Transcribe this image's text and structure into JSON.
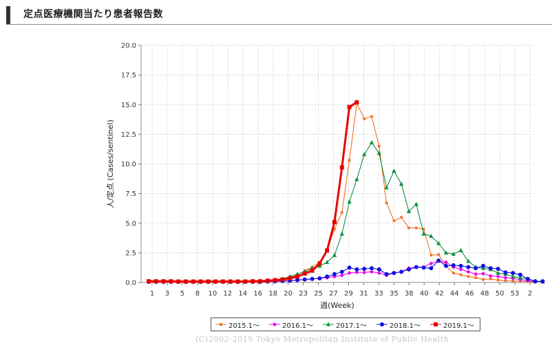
{
  "header": {
    "title": "定点医療機関当たり患者報告数"
  },
  "copyright": "(C)2002-2019 Tokyo Metropolitan Institute of Public Health",
  "chart_data": {
    "type": "line",
    "xlabel": "週(Week)",
    "ylabel": "人/定点 (Cases/sentinel)",
    "ylim": [
      0,
      20
    ],
    "y_ticks": [
      "0.0",
      "2.5",
      "5.0",
      "7.5",
      "10.0",
      "12.5",
      "15.0",
      "17.5",
      "20.0"
    ],
    "x_ticks": [
      "1",
      "3",
      "5",
      "8",
      "10",
      "12",
      "14",
      "16",
      "18",
      "20",
      "23",
      "25",
      "27",
      "29",
      "31",
      "33",
      "35",
      "38",
      "40",
      "42",
      "44",
      "46",
      "48",
      "50",
      "53",
      "2"
    ],
    "grid": true,
    "legend_position": "bottom",
    "series": [
      {
        "name": "2015.1～",
        "color": "#f07020",
        "marker": "square-small",
        "values": [
          0.1,
          0.1,
          0.1,
          0.08,
          0.08,
          0.1,
          0.08,
          0.08,
          0.08,
          0.08,
          0.1,
          0.1,
          0.1,
          0.1,
          0.1,
          0.1,
          0.15,
          0.2,
          0.3,
          0.45,
          0.65,
          1.0,
          1.3,
          1.7,
          2.7,
          4.5,
          5.9,
          10.3,
          15.1,
          13.8,
          14.0,
          11.5,
          6.7,
          5.2,
          5.5,
          4.6,
          4.6,
          4.5,
          2.3,
          2.35,
          1.4,
          0.8,
          0.65,
          0.5,
          0.4,
          0.25,
          0.3,
          0.2,
          0.15,
          0.12,
          0.1,
          0.08,
          0.05,
          0.05
        ]
      },
      {
        "name": "2016.1～",
        "color": "#ee00ee",
        "marker": "diamond",
        "values": [
          0.05,
          0.05,
          0.05,
          0.05,
          0.05,
          0.05,
          0.05,
          0.05,
          0.05,
          0.05,
          0.05,
          0.05,
          0.05,
          0.05,
          0.05,
          0.05,
          0.08,
          0.1,
          0.12,
          0.15,
          0.2,
          0.25,
          0.3,
          0.35,
          0.4,
          0.5,
          0.6,
          0.8,
          0.85,
          0.85,
          0.9,
          0.8,
          0.6,
          0.8,
          0.9,
          1.2,
          1.3,
          1.3,
          1.6,
          1.8,
          1.7,
          1.3,
          1.1,
          0.9,
          0.7,
          0.75,
          0.55,
          0.5,
          0.4,
          0.35,
          0.25,
          0.15,
          0.05,
          0.05
        ]
      },
      {
        "name": "2017.1～",
        "color": "#109040",
        "marker": "triangle",
        "values": [
          0.1,
          0.1,
          0.1,
          0.08,
          0.08,
          0.08,
          0.08,
          0.08,
          0.08,
          0.08,
          0.08,
          0.08,
          0.08,
          0.08,
          0.1,
          0.1,
          0.12,
          0.15,
          0.3,
          0.5,
          0.7,
          0.9,
          1.2,
          1.4,
          1.7,
          2.3,
          4.1,
          6.8,
          8.7,
          10.8,
          11.8,
          10.9,
          8.0,
          9.4,
          8.3,
          6.0,
          6.6,
          4.1,
          3.9,
          3.3,
          2.5,
          2.4,
          2.7,
          1.8,
          1.3,
          1.2,
          1.1,
          0.8,
          0.7,
          0.5,
          0.4,
          0.3,
          0.1,
          0.05
        ]
      },
      {
        "name": "2018.1～",
        "color": "#1010e0",
        "marker": "circle",
        "values": [
          0.05,
          0.05,
          0.05,
          0.05,
          0.05,
          0.05,
          0.05,
          0.05,
          0.05,
          0.05,
          0.05,
          0.05,
          0.05,
          0.05,
          0.05,
          0.05,
          0.08,
          0.1,
          0.12,
          0.15,
          0.2,
          0.25,
          0.3,
          0.35,
          0.5,
          0.7,
          0.9,
          1.25,
          1.1,
          1.15,
          1.2,
          1.1,
          0.7,
          0.8,
          0.9,
          1.1,
          1.3,
          1.25,
          1.2,
          1.85,
          1.4,
          1.45,
          1.4,
          1.3,
          1.2,
          1.4,
          1.2,
          1.15,
          0.85,
          0.8,
          0.65,
          0.3,
          0.1,
          0.1
        ]
      },
      {
        "name": "2019.1～",
        "color": "#e80000",
        "marker": "square",
        "values": [
          0.1,
          0.1,
          0.1,
          0.1,
          0.08,
          0.08,
          0.08,
          0.08,
          0.08,
          0.08,
          0.08,
          0.08,
          0.08,
          0.08,
          0.1,
          0.1,
          0.15,
          0.2,
          0.25,
          0.35,
          0.5,
          0.75,
          1.0,
          1.6,
          2.7,
          5.1,
          9.7,
          14.8,
          15.2
        ]
      }
    ]
  }
}
